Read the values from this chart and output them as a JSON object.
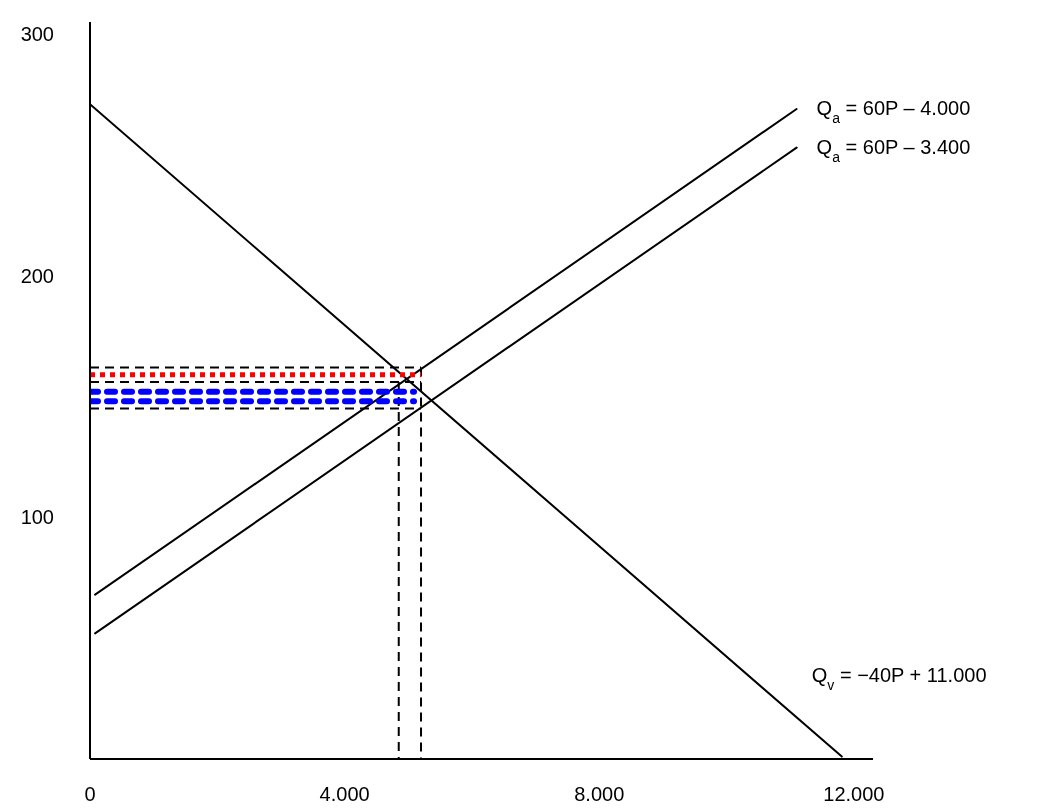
{
  "chart_data": {
    "type": "line",
    "xlim": [
      0,
      12300
    ],
    "ylim": [
      0,
      305
    ],
    "xticks": [
      0,
      {
        "value": 4000,
        "label": "4.000"
      },
      {
        "value": 8000,
        "label": "8.000"
      },
      {
        "value": 12000,
        "label": "12.000"
      }
    ],
    "yticks": [
      100,
      200,
      300
    ],
    "grid": false,
    "marker": "none",
    "line_style": "solid",
    "series": [
      {
        "name": "Q$_{v}$ = −40P + 11.000",
        "color": "#000000",
        "x": [
          0,
          11810
        ],
        "values": [
          271,
          1
        ]
      },
      {
        "name": "Q$_{a}$ = 60P – 4.000",
        "color": "#000000",
        "x": [
          80,
          11100
        ],
        "values": [
          68,
          269
        ]
      },
      {
        "name": "Q$_{a}$ = 60P – 3.400",
        "color": "#000000",
        "x": [
          80,
          11100
        ],
        "values": [
          52,
          253
        ]
      },
      {
        "color": "#000000",
        "line_style": "dashed",
        "x": [
          0,
          5200
        ],
        "values": [
          162,
          162
        ]
      },
      {
        "color": "#000000",
        "line_style": "dashed",
        "x": [
          0,
          5200
        ],
        "values": [
          156,
          156
        ]
      },
      {
        "color": "#000000",
        "line_style": "dashed",
        "x": [
          0,
          5200
        ],
        "values": [
          145,
          145
        ]
      },
      {
        "color": "#000000",
        "line_style": "dashed",
        "x": [
          5200,
          5200
        ],
        "values": [
          162,
          0
        ]
      },
      {
        "color": "#000000",
        "line_style": "dashed",
        "x": [
          4850,
          4850
        ],
        "values": [
          156,
          0
        ]
      },
      {
        "color": "#ff0000",
        "line_style": "dotted",
        "x": [
          0,
          5200
        ],
        "values": [
          159,
          159
        ]
      },
      {
        "color": "#0000ff",
        "line_style": "dashed",
        "x": [
          0,
          5090
        ],
        "values": [
          152,
          152
        ]
      },
      {
        "color": "#0000ff",
        "line_style": "dashed",
        "x": [
          0,
          5090
        ],
        "values": [
          148,
          148
        ]
      }
    ]
  }
}
